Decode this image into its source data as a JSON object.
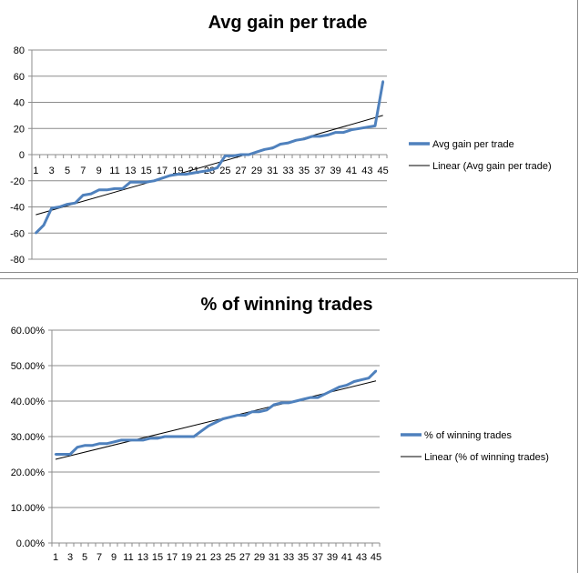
{
  "chart_data": [
    {
      "type": "line",
      "title": "Avg gain per trade",
      "xlabel": "",
      "ylabel": "",
      "x": [
        1,
        2,
        3,
        4,
        5,
        6,
        7,
        8,
        9,
        10,
        11,
        12,
        13,
        14,
        15,
        16,
        17,
        18,
        19,
        20,
        21,
        22,
        23,
        24,
        25,
        26,
        27,
        28,
        29,
        30,
        31,
        32,
        33,
        34,
        35,
        36,
        37,
        38,
        39,
        40,
        41,
        42,
        43,
        44,
        45
      ],
      "x_tick_labels": [
        "1",
        "3",
        "5",
        "7",
        "9",
        "11",
        "13",
        "15",
        "17",
        "19",
        "21",
        "23",
        "25",
        "27",
        "29",
        "31",
        "33",
        "35",
        "37",
        "39",
        "41",
        "43",
        "45"
      ],
      "y_tick_labels": [
        "80",
        "60",
        "40",
        "20",
        "0",
        "-20",
        "-40",
        "-60",
        "-80"
      ],
      "ylim": [
        -80,
        80
      ],
      "series": [
        {
          "name": "Avg gain per trade",
          "values": [
            -60,
            -54,
            -41,
            -40,
            -38,
            -37,
            -31,
            -30,
            -27,
            -27,
            -26,
            -26,
            -21,
            -21,
            -21,
            -20,
            -18,
            -16,
            -15,
            -15,
            -14,
            -13,
            -12,
            -10,
            -1,
            -1,
            0,
            0,
            2,
            4,
            5,
            8,
            9,
            11,
            12,
            14,
            14,
            15,
            17,
            17,
            19,
            20,
            21,
            22,
            56
          ],
          "color": "#4f81bd"
        },
        {
          "name": "Linear (Avg gain per trade)",
          "trendline": true,
          "values_endpoints": [
            -46,
            30
          ],
          "color": "#000000"
        }
      ],
      "grid": true,
      "legend_position": "right"
    },
    {
      "type": "line",
      "title": "% of winning trades",
      "xlabel": "",
      "ylabel": "",
      "x": [
        1,
        2,
        3,
        4,
        5,
        6,
        7,
        8,
        9,
        10,
        11,
        12,
        13,
        14,
        15,
        16,
        17,
        18,
        19,
        20,
        21,
        22,
        23,
        24,
        25,
        26,
        27,
        28,
        29,
        30,
        31,
        32,
        33,
        34,
        35,
        36,
        37,
        38,
        39,
        40,
        41,
        42,
        43,
        44,
        45
      ],
      "x_tick_labels": [
        "1",
        "3",
        "5",
        "7",
        "9",
        "11",
        "13",
        "15",
        "17",
        "19",
        "21",
        "23",
        "25",
        "27",
        "29",
        "31",
        "33",
        "35",
        "37",
        "39",
        "41",
        "43",
        "45"
      ],
      "y_tick_labels": [
        "60.00%",
        "50.00%",
        "40.00%",
        "30.00%",
        "20.00%",
        "10.00%",
        "0.00%"
      ],
      "ylim": [
        0,
        0.6
      ],
      "series": [
        {
          "name": "% of winning trades",
          "values": [
            0.25,
            0.25,
            0.25,
            0.27,
            0.275,
            0.275,
            0.28,
            0.28,
            0.285,
            0.29,
            0.29,
            0.29,
            0.29,
            0.295,
            0.295,
            0.3,
            0.3,
            0.3,
            0.3,
            0.3,
            0.315,
            0.33,
            0.34,
            0.35,
            0.355,
            0.36,
            0.36,
            0.37,
            0.37,
            0.375,
            0.39,
            0.395,
            0.395,
            0.4,
            0.405,
            0.41,
            0.41,
            0.42,
            0.43,
            0.44,
            0.445,
            0.455,
            0.46,
            0.465,
            0.485
          ],
          "color": "#4f81bd"
        },
        {
          "name": "Linear (% of winning trades)",
          "trendline": true,
          "values_endpoints": [
            0.236,
            0.457
          ],
          "color": "#000000"
        }
      ],
      "grid": true,
      "legend_position": "right"
    }
  ]
}
